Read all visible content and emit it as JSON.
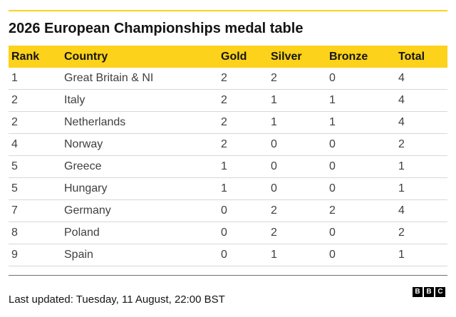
{
  "title": "2026 European Championships medal table",
  "columns": {
    "rank": "Rank",
    "country": "Country",
    "gold": "Gold",
    "silver": "Silver",
    "bronze": "Bronze",
    "total": "Total"
  },
  "rows": [
    {
      "rank": "1",
      "country": "Great Britain & NI",
      "gold": "2",
      "silver": "2",
      "bronze": "0",
      "total": "4"
    },
    {
      "rank": "2",
      "country": "Italy",
      "gold": "2",
      "silver": "1",
      "bronze": "1",
      "total": "4"
    },
    {
      "rank": "2",
      "country": "Netherlands",
      "gold": "2",
      "silver": "1",
      "bronze": "1",
      "total": "4"
    },
    {
      "rank": "4",
      "country": "Norway",
      "gold": "2",
      "silver": "0",
      "bronze": "0",
      "total": "2"
    },
    {
      "rank": "5",
      "country": "Greece",
      "gold": "1",
      "silver": "0",
      "bronze": "0",
      "total": "1"
    },
    {
      "rank": "5",
      "country": "Hungary",
      "gold": "1",
      "silver": "0",
      "bronze": "0",
      "total": "1"
    },
    {
      "rank": "7",
      "country": "Germany",
      "gold": "0",
      "silver": "2",
      "bronze": "2",
      "total": "4"
    },
    {
      "rank": "8",
      "country": "Poland",
      "gold": "0",
      "silver": "2",
      "bronze": "0",
      "total": "2"
    },
    {
      "rank": "9",
      "country": "Spain",
      "gold": "0",
      "silver": "1",
      "bronze": "0",
      "total": "1"
    }
  ],
  "footer": {
    "last_updated": "Last updated: Tuesday, 11 August, 22:00 BST"
  },
  "logo": {
    "letters": [
      "B",
      "B",
      "C"
    ]
  },
  "colors": {
    "header_accent": "#fcd21a",
    "title_text": "#141414",
    "body_text": "#3f3f42"
  }
}
